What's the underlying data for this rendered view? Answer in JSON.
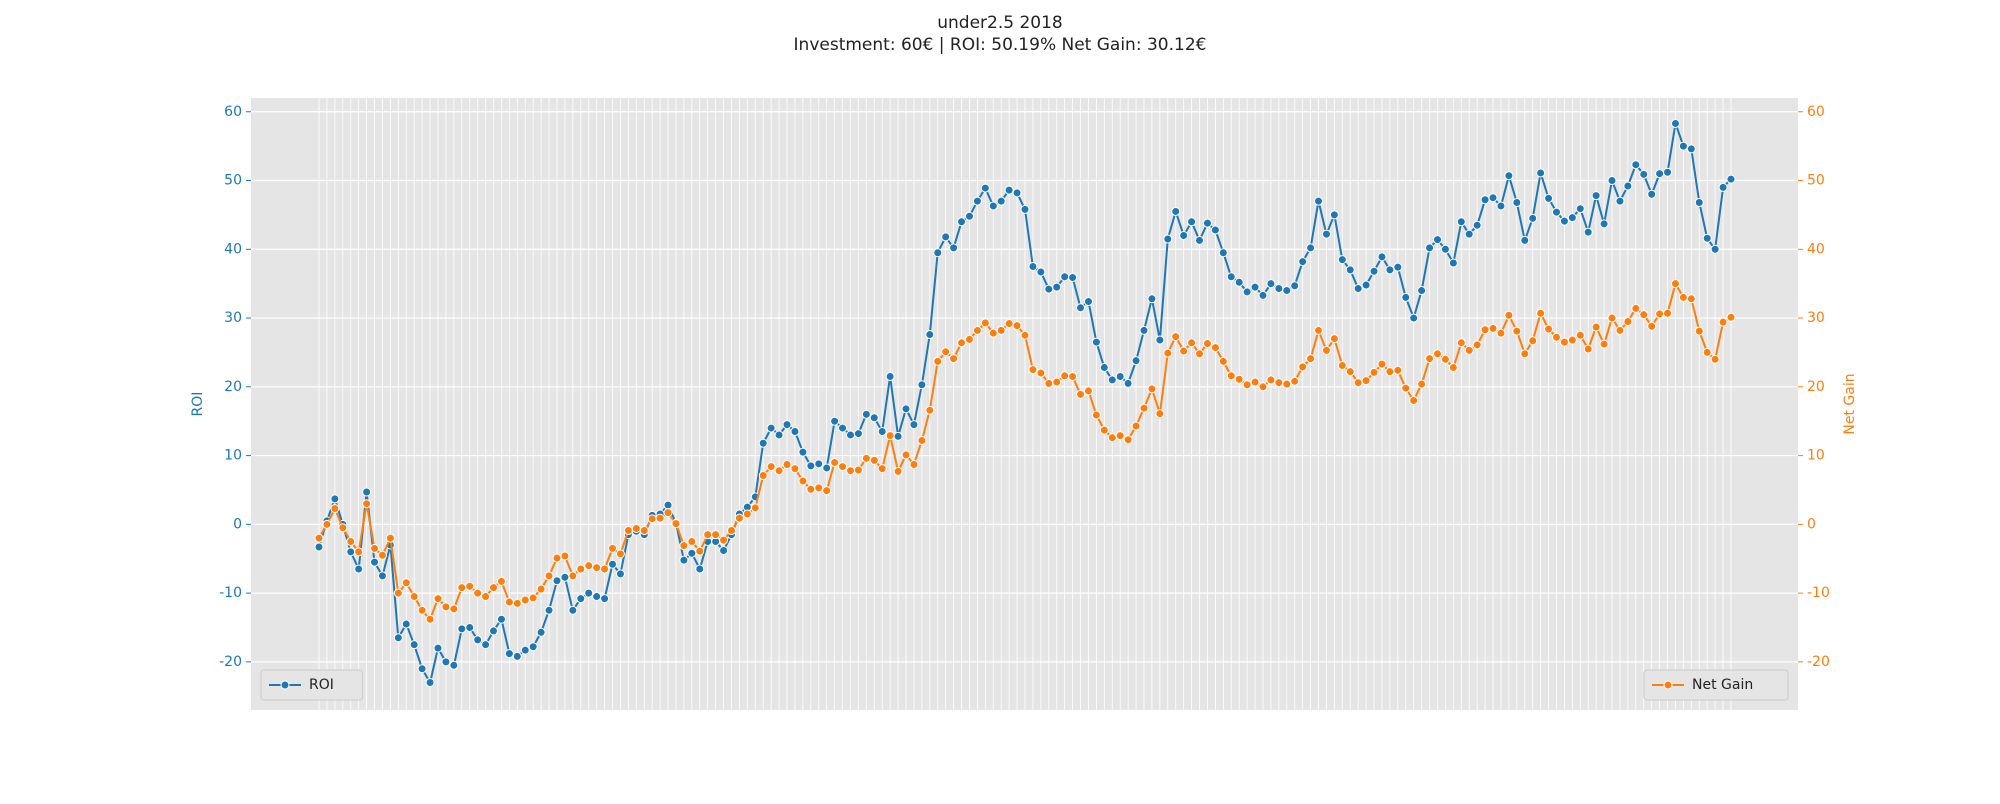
{
  "chart_data": {
    "type": "line",
    "title": "under2.5 2018",
    "subtitle": "Investment: 60€ | ROI: 50.19% Net Gain: 30.12€",
    "y_label": "ROI",
    "y2_label": "Net Gain",
    "grid": true,
    "legend": "lower left",
    "legend2": "lower right",
    "ylim": [
      -27,
      62
    ],
    "yticks": [
      -20,
      -10,
      0,
      10,
      20,
      30,
      40,
      50,
      60
    ],
    "y2lim": [
      -27,
      62
    ],
    "y2ticks": [
      -20,
      -10,
      0,
      10,
      20,
      30,
      40,
      50,
      60
    ],
    "series": [
      {
        "name": "ROI",
        "color": "#1f77b4",
        "values": [
          -3.3,
          0.5,
          3.7,
          0,
          -4,
          -6.5,
          4.7,
          -5.5,
          -7.5,
          -3,
          -16.5,
          -14.5,
          -17.5,
          -21,
          -23,
          -18,
          -20,
          -20.5,
          -15.2,
          -15,
          -16.8,
          -17.5,
          -15.5,
          -13.8,
          -18.8,
          -19.2,
          -18.3,
          -17.8,
          -15.7,
          -12.5,
          -8.2,
          -7.7,
          -12.5,
          -10.8,
          -10,
          -10.5,
          -10.8,
          -5.8,
          -7.2,
          -1.5,
          -1,
          -1.5,
          1.3,
          1.5,
          2.8,
          0.2,
          -5.2,
          -4.2,
          -6.5,
          -2.5,
          -2.5,
          -3.8,
          -1.5,
          1.5,
          2.5,
          4,
          11.8,
          14,
          13,
          14.5,
          13.5,
          10.5,
          8.5,
          8.8,
          8.2,
          15,
          14,
          13,
          13.2,
          16,
          15.5,
          13.5,
          21.5,
          12.8,
          16.8,
          14.5,
          20.3,
          27.6,
          39.5,
          41.8,
          40.2,
          44,
          44.8,
          47,
          48.9,
          46.3,
          47,
          48.6,
          48.2,
          45.8,
          37.5,
          36.7,
          34.2,
          34.5,
          36,
          35.9,
          31.5,
          32.4,
          26.5,
          22.8,
          21,
          21.5,
          20.5,
          23.8,
          28.2,
          32.8,
          26.8,
          41.5,
          45.5,
          42,
          44,
          41.3,
          43.8,
          42.8,
          39.5,
          36,
          35.2,
          33.8,
          34.5,
          33.3,
          35,
          34.3,
          34,
          34.7,
          38.2,
          40.2,
          47,
          42.2,
          45,
          38.5,
          37,
          34.3,
          34.8,
          36.8,
          38.9,
          37,
          37.4,
          33,
          30,
          34,
          40.2,
          41.4,
          40,
          38,
          44,
          42.2,
          43.5,
          47.2,
          47.5,
          46.3,
          50.7,
          46.8,
          41.3,
          44.5,
          51.1,
          47.4,
          45.4,
          44.1,
          44.6,
          45.9,
          42.5,
          47.8,
          43.7,
          50,
          47,
          49.2,
          52.3,
          50.9,
          48,
          51,
          51.2,
          58.3,
          55,
          54.6,
          46.8,
          41.6,
          40,
          49,
          50.2
        ]
      },
      {
        "name": "Net Gain",
        "color": "#ff7f0e",
        "axis": "y2",
        "values": [
          -2,
          0,
          2.3,
          -0.5,
          -2.5,
          -4,
          3,
          -3.5,
          -4.5,
          -2,
          -10,
          -8.5,
          -10.5,
          -12.5,
          -13.8,
          -10.8,
          -12,
          -12.3,
          -9.2,
          -9,
          -10,
          -10.5,
          -9.2,
          -8.3,
          -11.3,
          -11.5,
          -11,
          -10.7,
          -9.4,
          -7.5,
          -4.9,
          -4.6,
          -7.5,
          -6.5,
          -6,
          -6.3,
          -6.5,
          -3.5,
          -4.3,
          -0.9,
          -0.6,
          -0.9,
          0.8,
          0.9,
          1.7,
          0.1,
          -3.1,
          -2.5,
          -3.9,
          -1.5,
          -1.5,
          -2.3,
          -0.9,
          0.9,
          1.5,
          2.4,
          7.1,
          8.4,
          7.8,
          8.7,
          8.1,
          6.3,
          5.1,
          5.3,
          4.9,
          9,
          8.4,
          7.8,
          7.9,
          9.6,
          9.3,
          8.1,
          12.9,
          7.7,
          10.1,
          8.7,
          12.2,
          16.6,
          23.7,
          25.1,
          24.1,
          26.4,
          26.9,
          28.2,
          29.3,
          27.8,
          28.2,
          29.2,
          28.9,
          27.5,
          22.5,
          22,
          20.5,
          20.7,
          21.6,
          21.5,
          18.9,
          19.4,
          15.9,
          13.7,
          12.6,
          12.9,
          12.3,
          14.3,
          16.9,
          19.7,
          16.1,
          24.9,
          27.3,
          25.2,
          26.4,
          24.8,
          26.3,
          25.7,
          23.7,
          21.6,
          21.1,
          20.3,
          20.7,
          20,
          21,
          20.6,
          20.4,
          20.8,
          22.9,
          24.1,
          28.2,
          25.3,
          27,
          23.1,
          22.2,
          20.6,
          20.9,
          22.1,
          23.3,
          22.2,
          22.4,
          19.8,
          18,
          20.4,
          24.1,
          24.8,
          24,
          22.8,
          26.4,
          25.3,
          26.1,
          28.3,
          28.5,
          27.8,
          30.4,
          28.1,
          24.8,
          26.7,
          30.7,
          28.4,
          27.2,
          26.5,
          26.8,
          27.5,
          25.5,
          28.7,
          26.2,
          30,
          28.2,
          29.5,
          31.4,
          30.5,
          28.8,
          30.6,
          30.7,
          35,
          33,
          32.8,
          28.1,
          25,
          24,
          29.4,
          30.12
        ]
      }
    ]
  }
}
